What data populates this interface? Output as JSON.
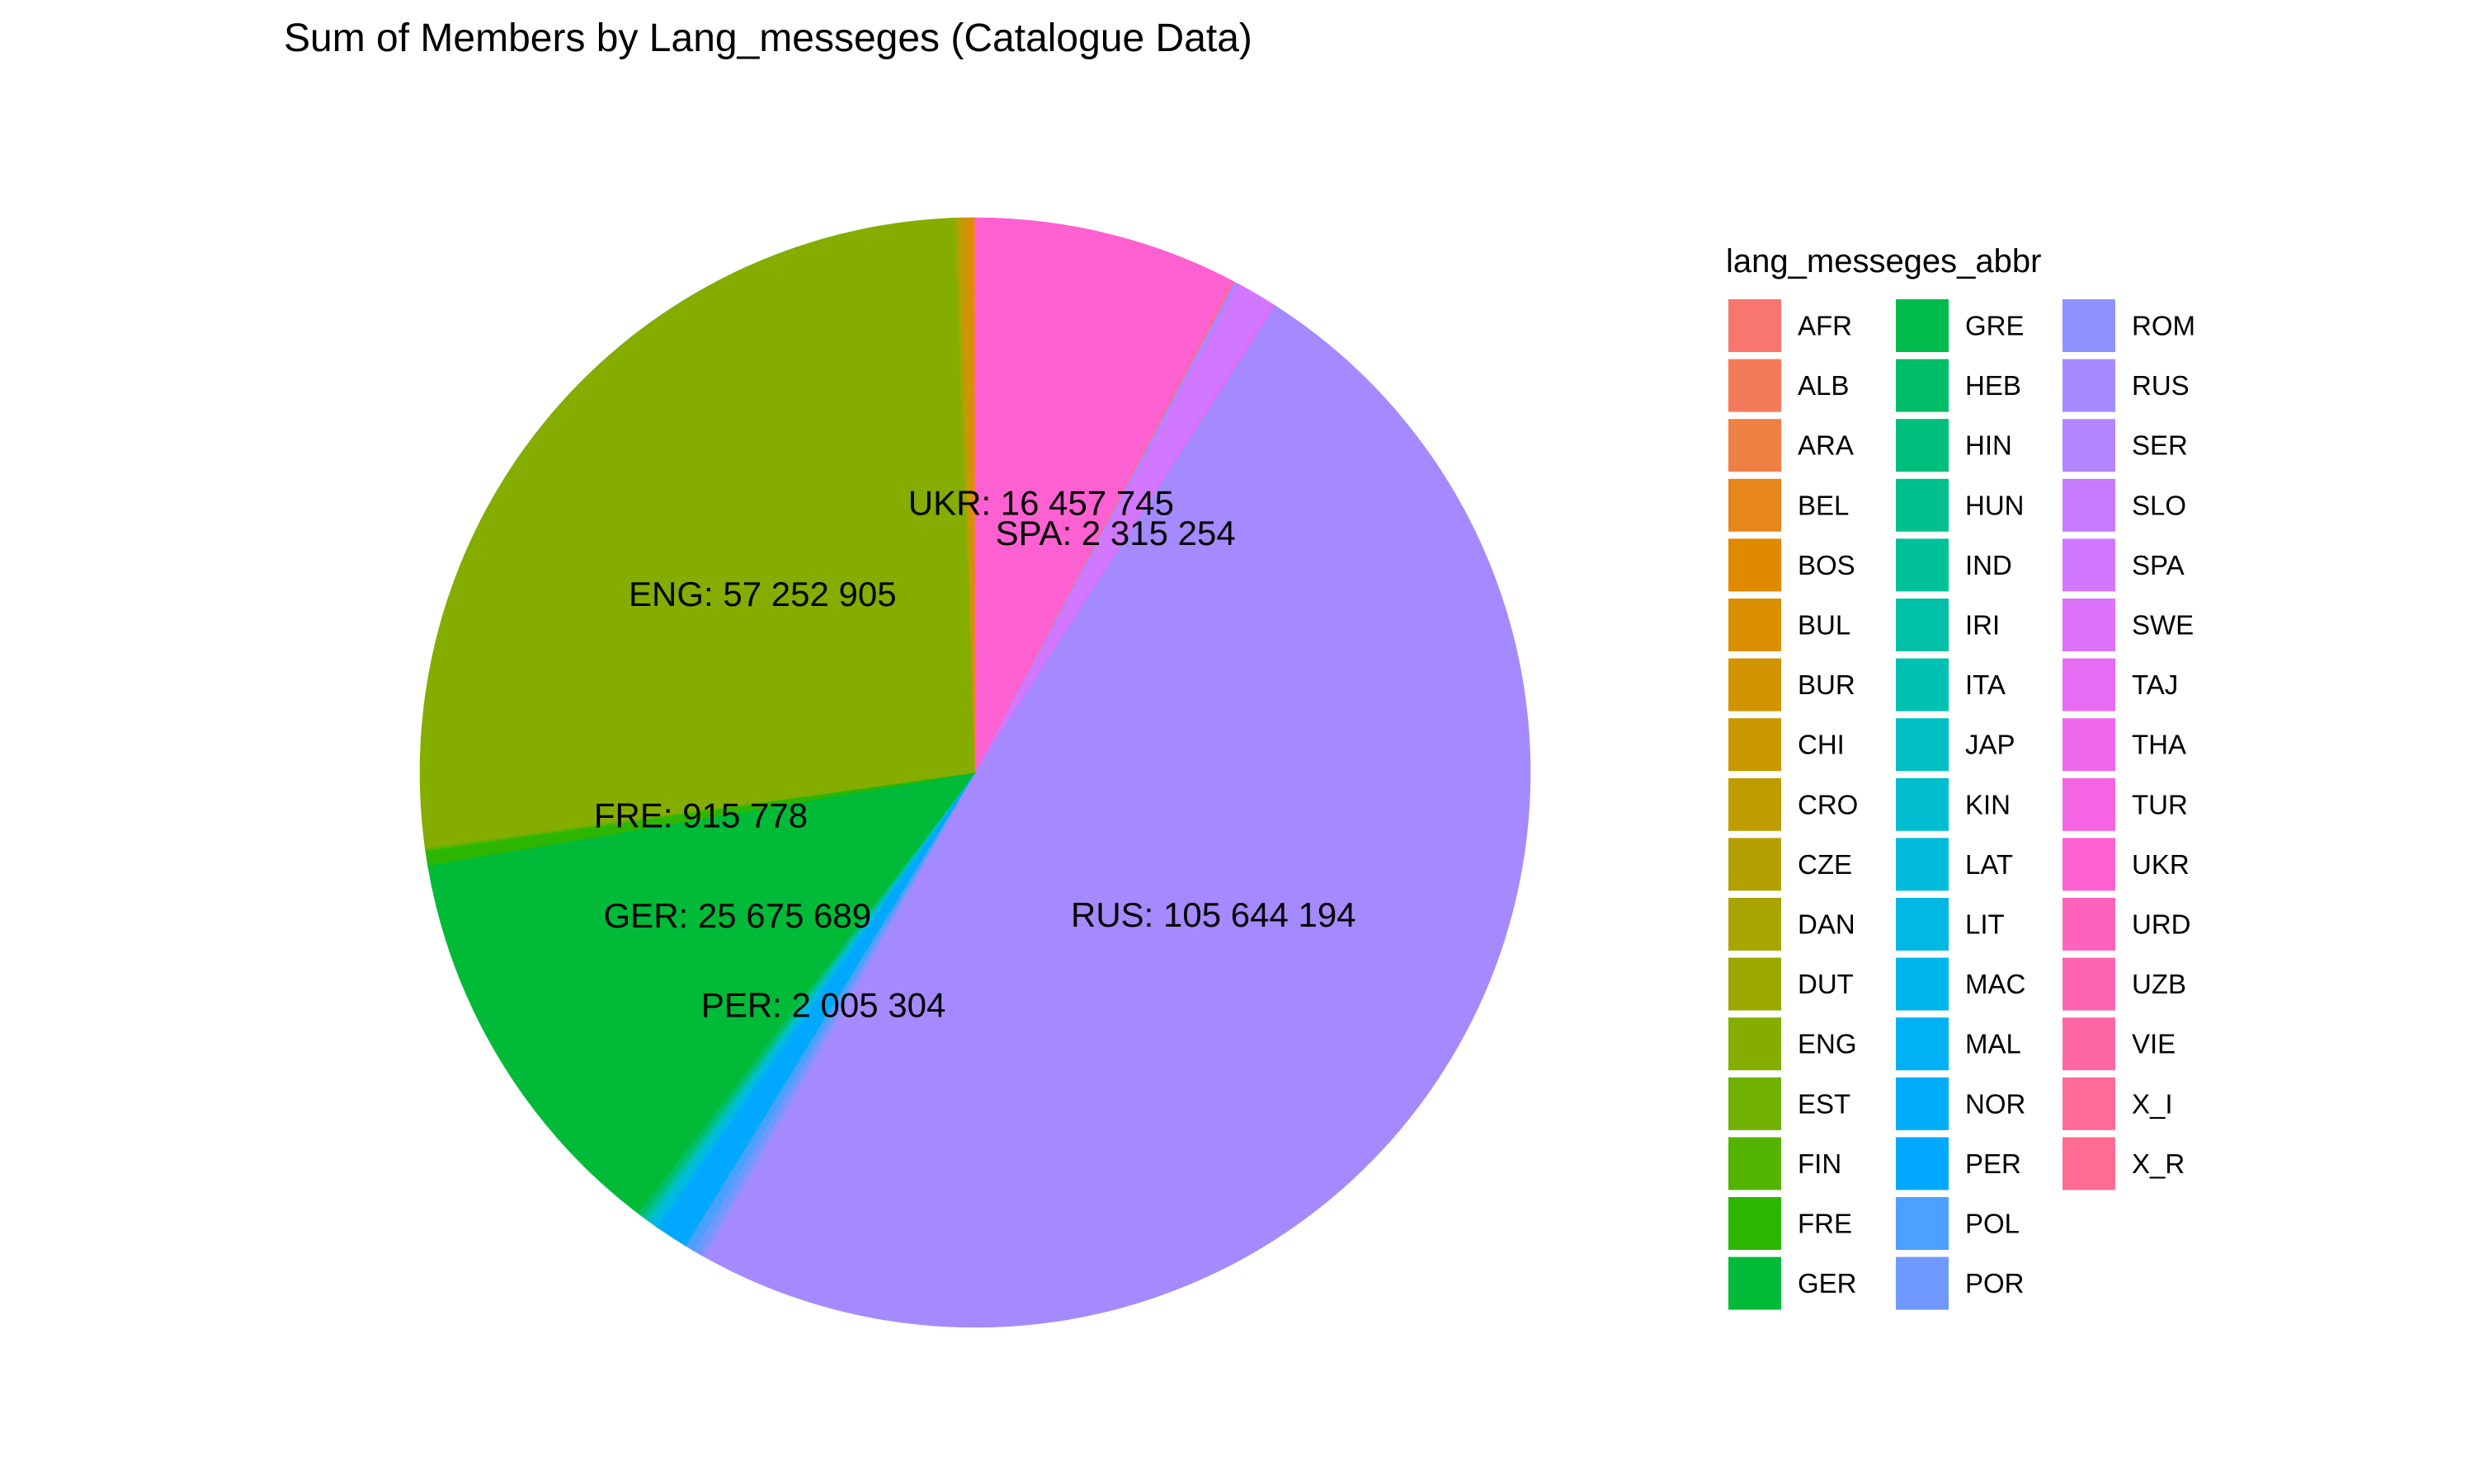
{
  "chart_data": {
    "type": "pie",
    "title": "Sum of Members by Lang_messeges (Catalogue Data)",
    "legend_title": "lang_messeges_abbr",
    "legend_position": "right",
    "start_angle": "12 o'clock",
    "direction": "clockwise",
    "order": [
      "UKR",
      "URD",
      "UZB",
      "VIE",
      "X_I",
      "X_R",
      "SER",
      "SLO",
      "SPA",
      "SWE",
      "TAJ",
      "THA",
      "TUR",
      "RUS",
      "ROM",
      "POR",
      "POL",
      "PER",
      "NOR",
      "MAL",
      "MAC",
      "LIT",
      "LAT",
      "KIN",
      "JAP",
      "ITA",
      "IRI",
      "IND",
      "HUN",
      "HIN",
      "HEB",
      "GRE",
      "GER",
      "FRE",
      "FIN",
      "EST",
      "ENG",
      "DUT",
      "DAN",
      "CZE",
      "CRO",
      "CHI",
      "BUR",
      "BUL",
      "BOS",
      "BEL",
      "ARA",
      "ALB",
      "AFR"
    ],
    "slices": [
      {
        "label": "AFR",
        "value": 10000,
        "color": "#F8766D"
      },
      {
        "label": "ALB",
        "value": 10000,
        "color": "#F47B5A"
      },
      {
        "label": "ARA",
        "value": 60000,
        "color": "#EE8044"
      },
      {
        "label": "BEL",
        "value": 60000,
        "color": "#E7861B"
      },
      {
        "label": "BOS",
        "value": 60000,
        "color": "#E18A00"
      },
      {
        "label": "BUL",
        "value": 150000,
        "color": "#DA8F00"
      },
      {
        "label": "BUR",
        "value": 300000,
        "color": "#D29300"
      },
      {
        "label": "CHI",
        "value": 200000,
        "color": "#C99800"
      },
      {
        "label": "CRO",
        "value": 80000,
        "color": "#BF9C00"
      },
      {
        "label": "CZE",
        "value": 150000,
        "color": "#B4A000"
      },
      {
        "label": "DAN",
        "value": 60000,
        "color": "#A8A400"
      },
      {
        "label": "DUT",
        "value": 150000,
        "color": "#9BA800"
      },
      {
        "label": "ENG",
        "value": 57252905,
        "color": "#84AD00"
      },
      {
        "label": "EST",
        "value": 80000,
        "color": "#70B000"
      },
      {
        "label": "FIN",
        "value": 120000,
        "color": "#53B400"
      },
      {
        "label": "FRE",
        "value": 915778,
        "color": "#2CB600"
      },
      {
        "label": "GER",
        "value": 25675689,
        "color": "#00BA38"
      },
      {
        "label": "GRE",
        "value": 60000,
        "color": "#00BC4D"
      },
      {
        "label": "HEB",
        "value": 300000,
        "color": "#00BE67"
      },
      {
        "label": "HIN",
        "value": 60000,
        "color": "#00BF7D"
      },
      {
        "label": "HUN",
        "value": 150000,
        "color": "#00C08D"
      },
      {
        "label": "IND",
        "value": 60000,
        "color": "#00C19A"
      },
      {
        "label": "IRI",
        "value": 40000,
        "color": "#00C1A7"
      },
      {
        "label": "ITA",
        "value": 150000,
        "color": "#00C0B2"
      },
      {
        "label": "JAP",
        "value": 60000,
        "color": "#00BFC4"
      },
      {
        "label": "KIN",
        "value": 40000,
        "color": "#00BDD0"
      },
      {
        "label": "LAT",
        "value": 300000,
        "color": "#00BBDA"
      },
      {
        "label": "LIT",
        "value": 200000,
        "color": "#00B8E3"
      },
      {
        "label": "MAC",
        "value": 40000,
        "color": "#00B5EC"
      },
      {
        "label": "MAL",
        "value": 60000,
        "color": "#00B1F4"
      },
      {
        "label": "NOR",
        "value": 80000,
        "color": "#00ADFA"
      },
      {
        "label": "PER",
        "value": 2005304,
        "color": "#00A9FF"
      },
      {
        "label": "POL",
        "value": 600000,
        "color": "#4BA1FF"
      },
      {
        "label": "POR",
        "value": 500000,
        "color": "#7099FF"
      },
      {
        "label": "ROM",
        "value": 300000,
        "color": "#8D92FF"
      },
      {
        "label": "RUS",
        "value": 105644194,
        "color": "#A58AFF"
      },
      {
        "label": "SER",
        "value": 300000,
        "color": "#B385FF"
      },
      {
        "label": "SLO",
        "value": 60000,
        "color": "#C77CFF"
      },
      {
        "label": "SPA",
        "value": 2315254,
        "color": "#D277FF"
      },
      {
        "label": "SWE",
        "value": 60000,
        "color": "#DC71FA"
      },
      {
        "label": "TAJ",
        "value": 40000,
        "color": "#E76BF3"
      },
      {
        "label": "THA",
        "value": 40000,
        "color": "#EF67EB"
      },
      {
        "label": "TUR",
        "value": 60000,
        "color": "#F564E3"
      },
      {
        "label": "UKR",
        "value": 16457745,
        "color": "#FD61D1"
      },
      {
        "label": "URD",
        "value": 40000,
        "color": "#FF62BC"
      },
      {
        "label": "UZB",
        "value": 40000,
        "color": "#FF64B0"
      },
      {
        "label": "VIE",
        "value": 60000,
        "color": "#FF67A4"
      },
      {
        "label": "X_I",
        "value": 40000,
        "color": "#FF6A98"
      },
      {
        "label": "X_R",
        "value": 40000,
        "color": "#FF6C91"
      }
    ],
    "data_labels": [
      {
        "label": "UKR",
        "text": "UKR: 16 457 745"
      },
      {
        "label": "SPA",
        "text": "SPA: 2 315 254"
      },
      {
        "label": "ENG",
        "text": "ENG: 57 252 905"
      },
      {
        "label": "FRE",
        "text": "FRE: 915 778"
      },
      {
        "label": "GER",
        "text": "GER: 25 675 689"
      },
      {
        "label": "PER",
        "text": "PER: 2 005 304"
      },
      {
        "label": "RUS",
        "text": "RUS: 105 644 194"
      }
    ]
  }
}
